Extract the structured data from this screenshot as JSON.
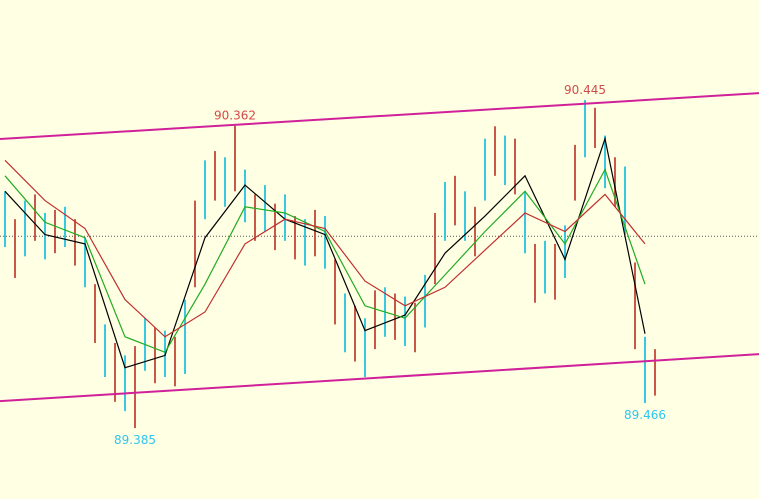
{
  "chart_data": {
    "type": "ohlc",
    "xlim": [
      -0.5,
      75.4
    ],
    "ylim": [
      89.156,
      90.768
    ],
    "bar_colors": [
      "#38c9e0",
      "#c8584a"
    ],
    "high": [
      90.15,
      90.06,
      90.12,
      90.14,
      90.08,
      90.09,
      90.1,
      90.06,
      90.0,
      89.85,
      89.72,
      89.66,
      89.62,
      89.65,
      89.74,
      89.71,
      89.7,
      89.68,
      89.8,
      90.12,
      90.25,
      90.28,
      90.26,
      90.362,
      90.22,
      90.14,
      90.17,
      90.11,
      90.14,
      90.07,
      90.06,
      90.09,
      90.07,
      89.93,
      89.82,
      89.78,
      89.74,
      89.83,
      89.84,
      89.82,
      89.81,
      89.79,
      89.88,
      90.08,
      90.18,
      90.2,
      90.15,
      90.1,
      90.32,
      90.36,
      90.33,
      90.32,
      90.15,
      89.98,
      89.99,
      89.98,
      90.04,
      90.3,
      90.445,
      90.42,
      90.33,
      90.26,
      90.23,
      89.92,
      89.68,
      89.64
    ],
    "low": [
      89.97,
      89.87,
      89.94,
      89.99,
      89.93,
      89.95,
      89.97,
      89.91,
      89.84,
      89.66,
      89.55,
      89.47,
      89.44,
      89.385,
      89.57,
      89.53,
      89.55,
      89.52,
      89.56,
      89.84,
      90.06,
      90.12,
      90.1,
      90.15,
      90.05,
      89.99,
      90.02,
      89.96,
      89.99,
      89.93,
      89.91,
      89.94,
      89.9,
      89.72,
      89.63,
      89.6,
      89.55,
      89.64,
      89.68,
      89.67,
      89.65,
      89.63,
      89.71,
      89.85,
      89.99,
      90.04,
      89.99,
      89.94,
      90.12,
      90.2,
      90.17,
      90.14,
      89.95,
      89.79,
      89.82,
      89.8,
      89.87,
      90.12,
      90.26,
      90.29,
      90.16,
      90.1,
      90.01,
      89.64,
      89.466,
      89.49
    ],
    "series": [
      {
        "color": "#000000",
        "x": [
          0,
          4,
          8,
          12,
          16,
          20,
          24,
          28,
          32,
          36,
          40,
          44,
          48,
          52,
          56,
          60,
          64
        ],
        "values": [
          90.15,
          90.01,
          89.98,
          89.58,
          89.62,
          90.0,
          90.17,
          90.06,
          90.01,
          89.7,
          89.75,
          89.95,
          90.07,
          90.2,
          89.93,
          90.32,
          89.69
        ]
      },
      {
        "color": "#22aa22",
        "x": [
          0,
          4,
          8,
          12,
          16,
          20,
          24,
          28,
          32,
          36,
          40,
          44,
          48,
          52,
          56,
          60,
          64
        ],
        "values": [
          90.2,
          90.05,
          90.0,
          89.68,
          89.63,
          89.85,
          90.1,
          90.08,
          90.02,
          89.78,
          89.74,
          89.88,
          90.02,
          90.15,
          89.98,
          90.22,
          89.85
        ]
      },
      {
        "color": "#c03030",
        "x": [
          0,
          4,
          8,
          12,
          16,
          20,
          24,
          28,
          32,
          36,
          40,
          44,
          48,
          52,
          56,
          60,
          64
        ],
        "values": [
          90.25,
          90.12,
          90.03,
          89.8,
          89.68,
          89.76,
          89.98,
          90.06,
          90.03,
          89.86,
          89.78,
          89.84,
          89.96,
          90.08,
          90.02,
          90.14,
          89.98
        ]
      }
    ],
    "channel": {
      "color": "#d0209a",
      "x": [
        -0.5,
        75.4
      ],
      "upper": [
        90.319,
        90.467
      ],
      "lower": [
        89.472,
        89.624
      ]
    },
    "level": 90.005,
    "annotations": [
      {
        "x": 23,
        "value": 90.362,
        "position": "above",
        "color": "#d24b4b"
      },
      {
        "x": 58,
        "value": 90.445,
        "position": "above",
        "color": "#d24b4b"
      },
      {
        "x": 13,
        "value": 89.385,
        "position": "below",
        "color": "#2fc6ee"
      },
      {
        "x": 64,
        "value": 89.466,
        "position": "below",
        "color": "#2fc6ee"
      }
    ]
  }
}
